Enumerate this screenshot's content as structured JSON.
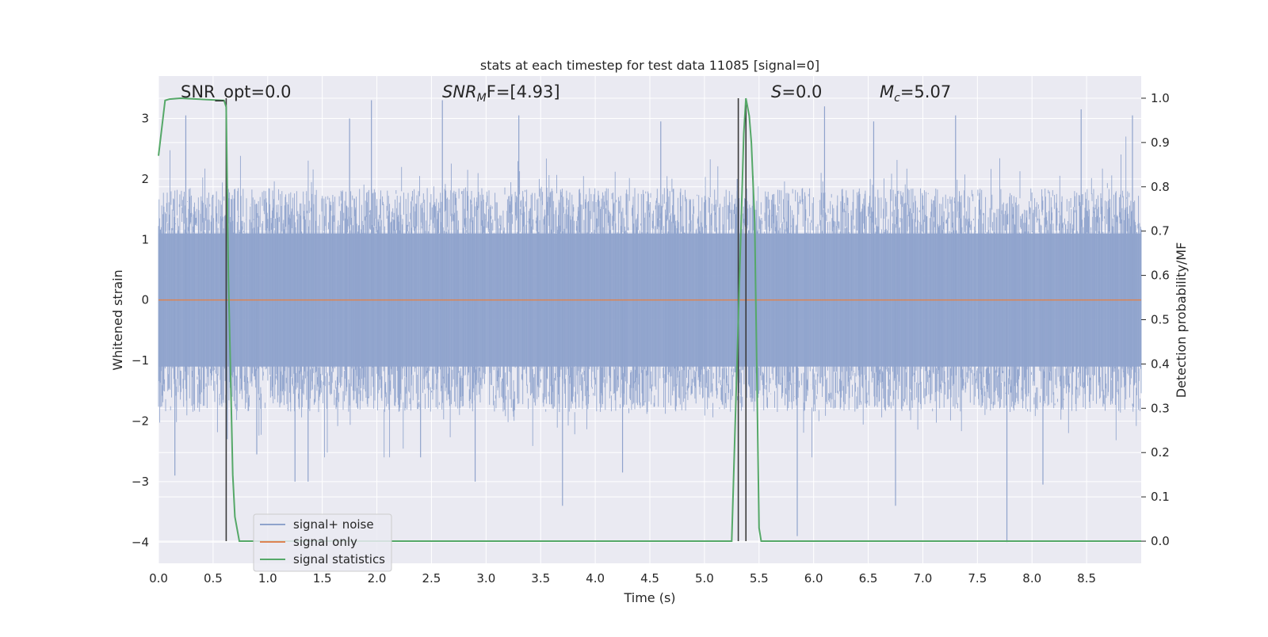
{
  "chart_data": {
    "type": "line",
    "title": "stats at each timestep for test data 11085 [signal=0]",
    "xlabel": "Time (s)",
    "ylabel": "Whitened strain",
    "y2label": "Detection probability/MF",
    "xlim": [
      0.0,
      9.0
    ],
    "ylim": [
      -4.35,
      3.7
    ],
    "y2lim": [
      -0.05,
      1.05
    ],
    "x_ticks": [
      "0.0",
      "0.5",
      "1.0",
      "1.5",
      "2.0",
      "2.5",
      "3.0",
      "3.5",
      "4.0",
      "4.5",
      "5.0",
      "5.5",
      "6.0",
      "6.5",
      "7.0",
      "7.5",
      "8.0",
      "8.5"
    ],
    "y_ticks": [
      "3",
      "2",
      "1",
      "0",
      "−1",
      "−2",
      "−3",
      "−4"
    ],
    "y2_ticks": [
      "1.0",
      "0.9",
      "0.8",
      "0.7",
      "0.6",
      "0.5",
      "0.4",
      "0.3",
      "0.2",
      "0.1",
      "0.0"
    ],
    "grid": true,
    "legend_position": "lower-left",
    "annotations": {
      "snr_opt": "SNR_opt=0.0",
      "snr_mf_base": "SNR",
      "snr_mf_sub": "M",
      "snr_mf_rest": "F=[4.93]",
      "s_var": "S",
      "s_rest": "=0.0",
      "mc_base": "M",
      "mc_sub": "c",
      "mc_rest": "=5.07"
    },
    "series": [
      {
        "name": "signal+ noise",
        "axis": "left",
        "color": "#8fa3cc",
        "description_level": "dense whitened noise, bulk within about ±1.85, spikes to ±3",
        "envelope_typical": 1.85,
        "spikes": [
          {
            "x": 0.15,
            "y": -2.9
          },
          {
            "x": 0.25,
            "y": 3.05
          },
          {
            "x": 0.63,
            "y": -2.3
          },
          {
            "x": 0.9,
            "y": -2.55
          },
          {
            "x": 1.25,
            "y": -3.0
          },
          {
            "x": 1.37,
            "y": -3.0
          },
          {
            "x": 1.75,
            "y": 3.0
          },
          {
            "x": 1.95,
            "y": 3.3
          },
          {
            "x": 2.4,
            "y": -2.6
          },
          {
            "x": 2.6,
            "y": 3.3
          },
          {
            "x": 2.9,
            "y": -3.0
          },
          {
            "x": 3.3,
            "y": 3.05
          },
          {
            "x": 3.7,
            "y": -3.4
          },
          {
            "x": 4.25,
            "y": -2.85
          },
          {
            "x": 4.6,
            "y": 2.95
          },
          {
            "x": 5.3,
            "y": 2.0
          },
          {
            "x": 5.85,
            "y": -3.9
          },
          {
            "x": 6.1,
            "y": 3.2
          },
          {
            "x": 6.55,
            "y": 2.95
          },
          {
            "x": 6.75,
            "y": -3.4
          },
          {
            "x": 7.3,
            "y": 3.05
          },
          {
            "x": 7.77,
            "y": -4.0
          },
          {
            "x": 8.1,
            "y": -3.05
          },
          {
            "x": 8.45,
            "y": 3.15
          },
          {
            "x": 8.92,
            "y": 3.05
          }
        ]
      },
      {
        "name": "signal only",
        "axis": "left",
        "color": "#dd8452",
        "x": [
          0.0,
          9.0
        ],
        "y": [
          0.0,
          0.0
        ]
      },
      {
        "name": "signal statistics",
        "axis": "right",
        "color": "#55a868",
        "x": [
          0.0,
          0.06,
          0.1,
          0.2,
          0.6,
          0.62,
          0.64,
          0.68,
          0.7,
          0.74,
          0.8,
          5.25,
          5.31,
          5.36,
          5.38,
          5.41,
          5.43,
          5.46,
          5.5,
          5.52,
          5.56,
          9.0
        ],
        "y": [
          0.87,
          0.995,
          0.998,
          1.0,
          0.995,
          0.98,
          0.6,
          0.15,
          0.055,
          0.0,
          0.0,
          0.0,
          0.5,
          0.92,
          1.0,
          0.96,
          0.9,
          0.72,
          0.03,
          0.0,
          0.0,
          0.0
        ]
      }
    ],
    "vertical_markers": {
      "color": "#3a3a3a",
      "x": [
        0.62,
        5.31,
        5.38
      ]
    }
  }
}
